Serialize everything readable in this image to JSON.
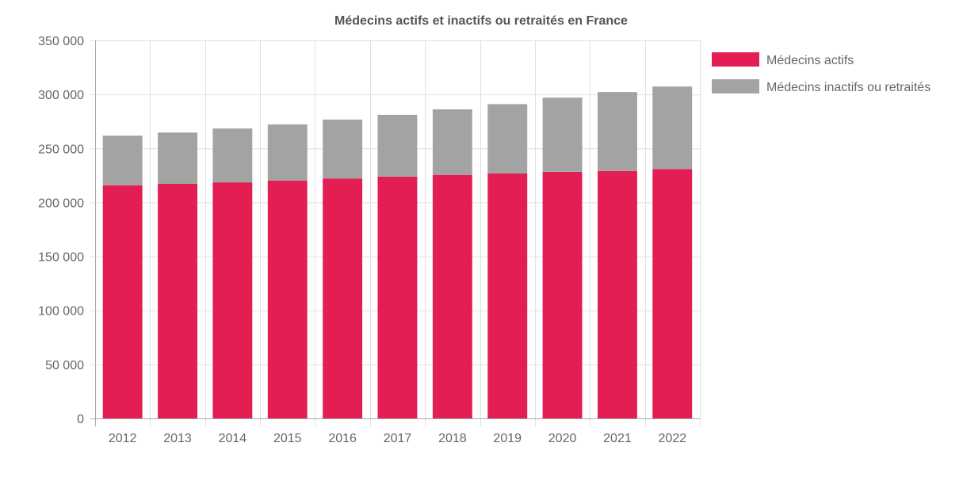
{
  "chart_data": {
    "type": "bar",
    "stacked": true,
    "title": "Médecins actifs et inactifs ou retraités en France",
    "xlabel": "",
    "ylabel": "",
    "categories": [
      "2012",
      "2013",
      "2014",
      "2015",
      "2016",
      "2017",
      "2018",
      "2019",
      "2020",
      "2021",
      "2022"
    ],
    "series": [
      {
        "name": "Médecins actifs",
        "color": "#e31e52",
        "values": [
          215900,
          217200,
          218600,
          220300,
          222200,
          223900,
          225500,
          226700,
          228300,
          229000,
          230900
        ]
      },
      {
        "name": "Médecins inactifs ou retraités",
        "color": "#a3a3a3",
        "values": [
          45900,
          47500,
          49800,
          51900,
          54500,
          57200,
          60700,
          64300,
          68700,
          73200,
          76400
        ]
      }
    ],
    "ylim": [
      0,
      350000
    ],
    "yticks": [
      0,
      50000,
      100000,
      150000,
      200000,
      250000,
      300000,
      350000
    ],
    "ytick_labels": [
      "0",
      "50 000",
      "100 000",
      "150 000",
      "200 000",
      "250 000",
      "300 000",
      "350 000"
    ],
    "grid": true,
    "legend_position": "right"
  }
}
